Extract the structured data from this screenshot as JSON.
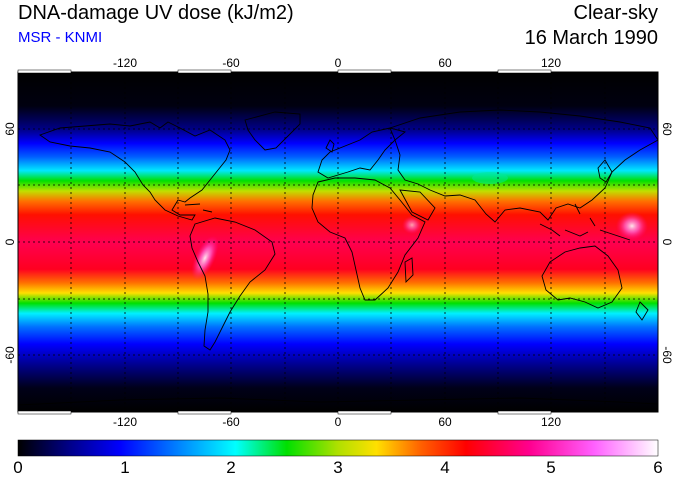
{
  "title": "DNA-damage UV dose (kJ/m2)",
  "subtitle": "MSR - KNMI",
  "right_title": "Clear-sky",
  "date": "16 March 1990",
  "map": {
    "projection": "equirectangular",
    "lon_ticks": [
      "-120",
      "-60",
      "0",
      "60",
      "120"
    ],
    "lat_ticks": [
      "60",
      "0",
      "-60"
    ],
    "lon_values": [
      -120,
      -60,
      0,
      60,
      120
    ],
    "lat_values": [
      60,
      0,
      -60
    ],
    "lon_range": [
      -180,
      180
    ],
    "lat_range": [
      -90,
      90
    ],
    "grid": "dotted every 30 degrees",
    "colormap": [
      "#000000",
      "#000088",
      "#0000ff",
      "#0090ff",
      "#00ffff",
      "#00e000",
      "#b0e000",
      "#ffe000",
      "#ff6000",
      "#ff0000",
      "#ff0090",
      "#ff60ff",
      "#ffffff"
    ]
  },
  "colorbar": {
    "labels": [
      "0",
      "1",
      "2",
      "3",
      "4",
      "5",
      "6"
    ],
    "min": 0,
    "max": 6
  }
}
